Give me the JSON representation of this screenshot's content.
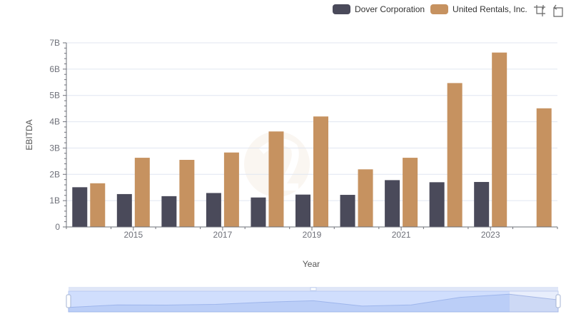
{
  "legend": [
    {
      "name": "Dover Corporation",
      "color": "#4a4a5a"
    },
    {
      "name": "United Rentals, Inc.",
      "color": "#c69260"
    }
  ],
  "toolbox": {
    "zoom_icon": "zoom-icon",
    "restore_icon": "restore-icon"
  },
  "chart_data": {
    "type": "bar",
    "xlabel": "Year",
    "ylabel": "EBITDA",
    "x": [
      2014,
      2015,
      2016,
      2017,
      2018,
      2019,
      2020,
      2021,
      2022,
      2023,
      2024
    ],
    "x_tick_labels": [
      "2015",
      "2017",
      "2019",
      "2021",
      "2023"
    ],
    "y_tick_labels": [
      "0",
      "1B",
      "2B",
      "3B",
      "4B",
      "5B",
      "6B",
      "7B"
    ],
    "ylim": [
      0,
      7000000000
    ],
    "grid": true,
    "legend_position": "top-right",
    "series": [
      {
        "name": "Dover Corporation",
        "color": "#4a4a5a",
        "values": [
          1510000000,
          1250000000,
          1170000000,
          1290000000,
          1120000000,
          1230000000,
          1220000000,
          1780000000,
          1700000000,
          1710000000,
          null
        ]
      },
      {
        "name": "United Rentals, Inc.",
        "color": "#c69260",
        "values": [
          1660000000,
          2630000000,
          2550000000,
          2830000000,
          3630000000,
          4200000000,
          2190000000,
          2630000000,
          5470000000,
          6630000000,
          4510000000
        ]
      }
    ]
  }
}
